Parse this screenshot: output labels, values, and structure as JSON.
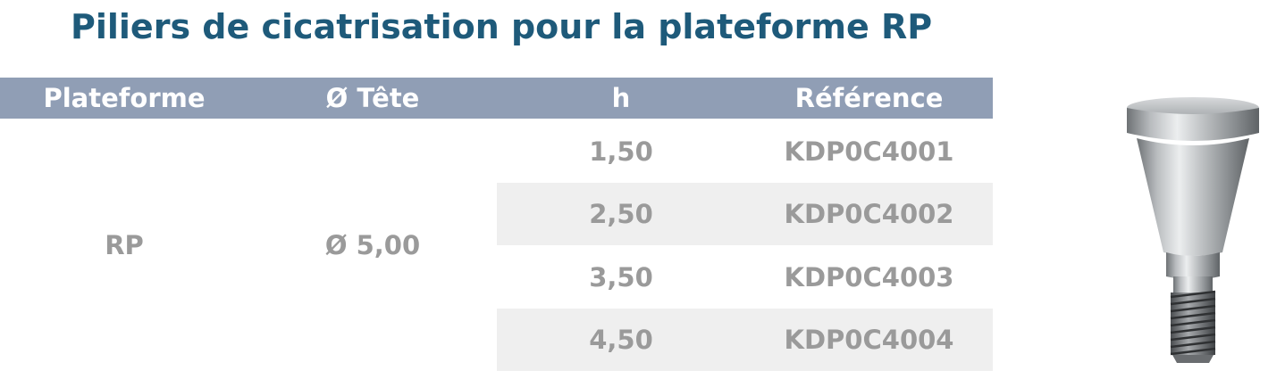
{
  "title": "Piliers de cicatrisation pour la plateforme RP",
  "table": {
    "headers": [
      "Plateforme",
      "Ø Tête",
      "h",
      "Référence"
    ],
    "plateforme": "RP",
    "tete": "Ø 5,00",
    "rows": [
      {
        "h": "1,50",
        "ref": "KDP0C4001"
      },
      {
        "h": "2,50",
        "ref": "KDP0C4002"
      },
      {
        "h": "3,50",
        "ref": "KDP0C4003"
      },
      {
        "h": "4,50",
        "ref": "KDP0C4004"
      }
    ]
  },
  "colors": {
    "title": "#1e5a7a",
    "header_bg": "#909eb5",
    "text": "#9a9a9a",
    "band": "#efefef"
  }
}
